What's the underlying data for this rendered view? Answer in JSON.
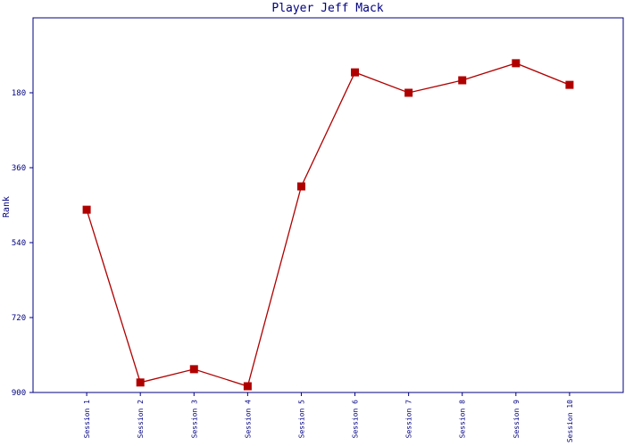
{
  "chart_data": {
    "type": "line",
    "title": "Player Jeff Mack",
    "y_label": "Rank",
    "categories": [
      "Session 1",
      "Session 2",
      "Session 3",
      "Session 4",
      "Session 5",
      "Session 6",
      "Session 7",
      "Session 8",
      "Session 9",
      "Session 10"
    ],
    "series": [
      {
        "name": "Rank",
        "color": "#b00000",
        "values": [
          461,
          876,
          844,
          885,
          405,
          131,
          180,
          150,
          109,
          161
        ]
      }
    ],
    "ylim": [
      0,
      900
    ],
    "y_inverted": true,
    "yticks": [
      180,
      360,
      540,
      720,
      900
    ],
    "grid": false
  }
}
